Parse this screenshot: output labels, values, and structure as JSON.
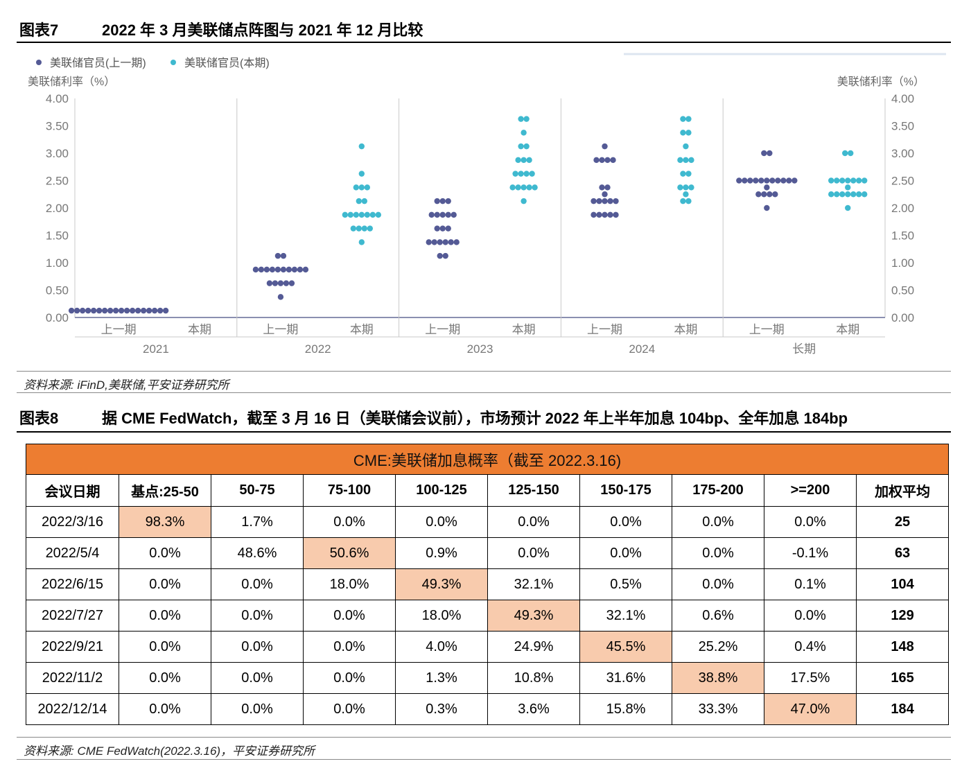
{
  "figure7": {
    "number": "图表7",
    "title": "2022 年 3 月美联储点阵图与 2021 年 12 月比较",
    "source": "资料来源: iFinD,美联储,平安证券研究所"
  },
  "chart_data": {
    "type": "scatter",
    "legend": [
      {
        "name": "美联储官员(上一期)",
        "color": "#545a95"
      },
      {
        "name": "美联储官员(本期)",
        "color": "#3fb9cf"
      }
    ],
    "legend_position": "top-left",
    "ylabel_left": "美联储利率（%）",
    "ylabel_right": "美联储利率（%）",
    "ylim": [
      0,
      4
    ],
    "yticks": [
      "0.00",
      "0.50",
      "1.00",
      "1.50",
      "2.00",
      "2.50",
      "3.00",
      "3.50",
      "4.00"
    ],
    "grid": "vertical group separators",
    "groups": [
      {
        "label": "2021",
        "sub": [
          {
            "label": "上一期",
            "series": 0,
            "dots": [
              {
                "rate": 0.125,
                "count": 18
              }
            ]
          },
          {
            "label": "本期",
            "series": 1,
            "dots": []
          }
        ]
      },
      {
        "label": "2022",
        "sub": [
          {
            "label": "上一期",
            "series": 0,
            "dots": [
              {
                "rate": 1.125,
                "count": 2
              },
              {
                "rate": 0.875,
                "count": 10
              },
              {
                "rate": 0.625,
                "count": 5
              },
              {
                "rate": 0.375,
                "count": 1
              }
            ]
          },
          {
            "label": "本期",
            "series": 1,
            "dots": [
              {
                "rate": 3.125,
                "count": 1
              },
              {
                "rate": 2.625,
                "count": 1
              },
              {
                "rate": 2.375,
                "count": 3
              },
              {
                "rate": 2.125,
                "count": 2
              },
              {
                "rate": 1.875,
                "count": 7
              },
              {
                "rate": 1.625,
                "count": 4
              },
              {
                "rate": 1.375,
                "count": 1
              }
            ]
          }
        ]
      },
      {
        "label": "2023",
        "sub": [
          {
            "label": "上一期",
            "series": 0,
            "dots": [
              {
                "rate": 2.125,
                "count": 3
              },
              {
                "rate": 1.875,
                "count": 5
              },
              {
                "rate": 1.625,
                "count": 3
              },
              {
                "rate": 1.375,
                "count": 6
              },
              {
                "rate": 1.125,
                "count": 2
              }
            ]
          },
          {
            "label": "本期",
            "series": 1,
            "dots": [
              {
                "rate": 3.625,
                "count": 2
              },
              {
                "rate": 3.375,
                "count": 1
              },
              {
                "rate": 3.125,
                "count": 2
              },
              {
                "rate": 2.875,
                "count": 3
              },
              {
                "rate": 2.625,
                "count": 4
              },
              {
                "rate": 2.375,
                "count": 5
              },
              {
                "rate": 2.125,
                "count": 1
              }
            ]
          }
        ]
      },
      {
        "label": "2024",
        "sub": [
          {
            "label": "上一期",
            "series": 0,
            "dots": [
              {
                "rate": 3.125,
                "count": 1
              },
              {
                "rate": 2.875,
                "count": 4
              },
              {
                "rate": 2.375,
                "count": 2
              },
              {
                "rate": 2.25,
                "count": 1
              },
              {
                "rate": 2.125,
                "count": 5
              },
              {
                "rate": 1.875,
                "count": 5
              }
            ]
          },
          {
            "label": "本期",
            "series": 1,
            "dots": [
              {
                "rate": 3.625,
                "count": 2
              },
              {
                "rate": 3.375,
                "count": 2
              },
              {
                "rate": 3.125,
                "count": 1
              },
              {
                "rate": 2.875,
                "count": 3
              },
              {
                "rate": 2.625,
                "count": 2
              },
              {
                "rate": 2.375,
                "count": 3
              },
              {
                "rate": 2.25,
                "count": 1
              },
              {
                "rate": 2.125,
                "count": 2
              }
            ]
          }
        ]
      },
      {
        "label": "长期",
        "sub": [
          {
            "label": "上一期",
            "series": 0,
            "dots": [
              {
                "rate": 3.0,
                "count": 2
              },
              {
                "rate": 2.5,
                "count": 11
              },
              {
                "rate": 2.375,
                "count": 1
              },
              {
                "rate": 2.25,
                "count": 4
              },
              {
                "rate": 2.0,
                "count": 1
              }
            ]
          },
          {
            "label": "本期",
            "series": 1,
            "dots": [
              {
                "rate": 3.0,
                "count": 2
              },
              {
                "rate": 2.5,
                "count": 7
              },
              {
                "rate": 2.375,
                "count": 1
              },
              {
                "rate": 2.25,
                "count": 7
              },
              {
                "rate": 2.0,
                "count": 1
              }
            ]
          }
        ]
      }
    ]
  },
  "figure8": {
    "number": "图表8",
    "title": "据 CME FedWatch，截至 3 月 16 日（美联储会议前），市场预计 2022 年上半年加息 104bp、全年加息 184bp",
    "source": "资料来源: CME FedWatch(2022.3.16)，平安证券研究所",
    "table": {
      "title": "CME:美联储加息概率（截至 2022.3.16)",
      "header_color": "#ed7d31",
      "highlight_color": "#f8cbad",
      "columns": [
        "会议日期",
        "基点:25-50",
        "50-75",
        "75-100",
        "100-125",
        "125-150",
        "150-175",
        "175-200",
        ">=200",
        "加权平均"
      ],
      "rows": [
        {
          "cells": [
            "2022/3/16",
            "98.3%",
            "1.7%",
            "0.0%",
            "0.0%",
            "0.0%",
            "0.0%",
            "0.0%",
            "0.0%",
            "25"
          ],
          "highlight": 1
        },
        {
          "cells": [
            "2022/5/4",
            "0.0%",
            "48.6%",
            "50.6%",
            "0.9%",
            "0.0%",
            "0.0%",
            "0.0%",
            "-0.1%",
            "63"
          ],
          "highlight": 3
        },
        {
          "cells": [
            "2022/6/15",
            "0.0%",
            "0.0%",
            "18.0%",
            "49.3%",
            "32.1%",
            "0.5%",
            "0.0%",
            "0.1%",
            "104"
          ],
          "highlight": 4
        },
        {
          "cells": [
            "2022/7/27",
            "0.0%",
            "0.0%",
            "0.0%",
            "18.0%",
            "49.3%",
            "32.1%",
            "0.6%",
            "0.0%",
            "129"
          ],
          "highlight": 5
        },
        {
          "cells": [
            "2022/9/21",
            "0.0%",
            "0.0%",
            "0.0%",
            "4.0%",
            "24.9%",
            "45.5%",
            "25.2%",
            "0.4%",
            "148"
          ],
          "highlight": 6
        },
        {
          "cells": [
            "2022/11/2",
            "0.0%",
            "0.0%",
            "0.0%",
            "1.3%",
            "10.8%",
            "31.6%",
            "38.8%",
            "17.5%",
            "165"
          ],
          "highlight": 7
        },
        {
          "cells": [
            "2022/12/14",
            "0.0%",
            "0.0%",
            "0.0%",
            "0.3%",
            "3.6%",
            "15.8%",
            "33.3%",
            "47.0%",
            "184"
          ],
          "highlight": 8
        }
      ]
    }
  }
}
